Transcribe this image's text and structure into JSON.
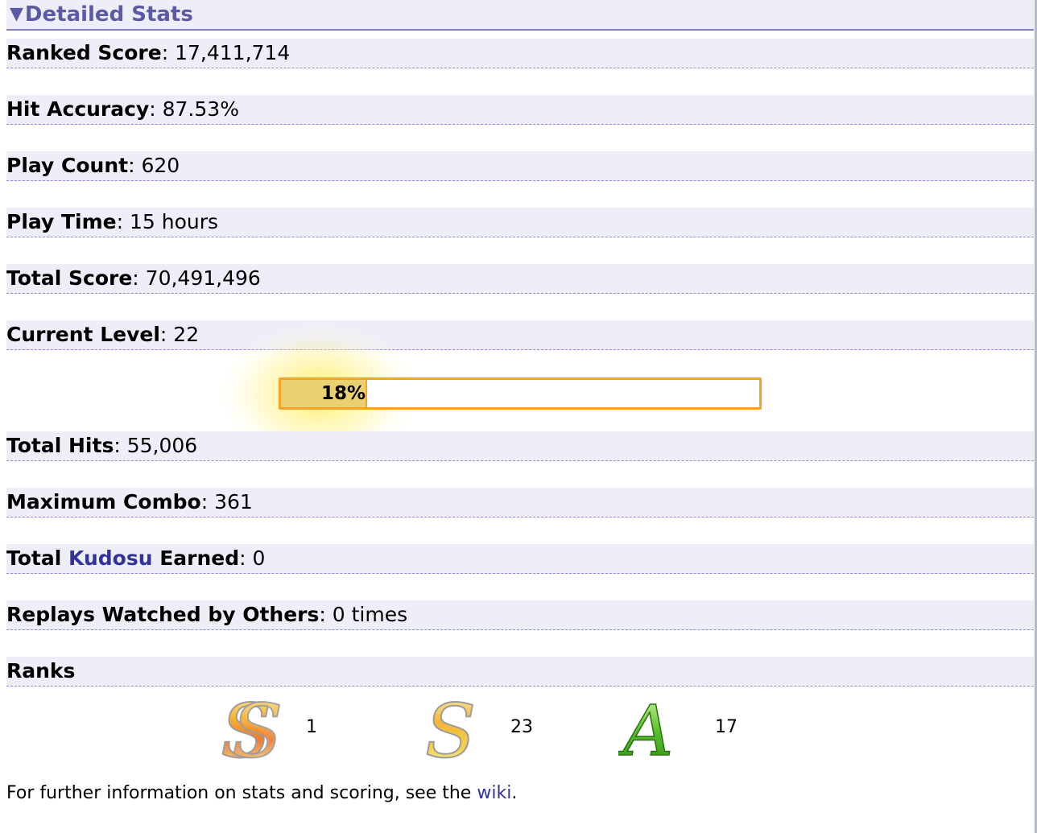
{
  "section": {
    "title": "Detailed Stats",
    "toggle_glyph": "▼"
  },
  "stats": {
    "ranked_score": {
      "label": "Ranked Score",
      "value": "17,411,714"
    },
    "hit_accuracy": {
      "label": "Hit Accuracy",
      "value": "87.53%"
    },
    "play_count": {
      "label": "Play Count",
      "value": "620"
    },
    "play_time": {
      "label": "Play Time",
      "value": "15 hours"
    },
    "total_score": {
      "label": "Total Score",
      "value": "70,491,496"
    },
    "current_level": {
      "label": "Current Level",
      "value": "22"
    },
    "total_hits": {
      "label": "Total Hits",
      "value": "55,006"
    },
    "maximum_combo": {
      "label": "Maximum Combo",
      "value": "361"
    },
    "kudosu": {
      "label_pre": "Total ",
      "link": "Kudosu",
      "label_post": " Earned",
      "value": "0"
    },
    "replays_watched": {
      "label": "Replays Watched by Others",
      "value": "0 times"
    }
  },
  "level_progress": {
    "percent": 18,
    "label": "18%",
    "fill_color": "#ead070",
    "border_color": "#f3a428"
  },
  "ranks": {
    "label": "Ranks",
    "items": [
      {
        "icon": "ss-rank-icon",
        "count": "1"
      },
      {
        "icon": "s-rank-icon",
        "count": "23"
      },
      {
        "icon": "a-rank-icon",
        "count": "17"
      }
    ]
  },
  "footer": {
    "text": "For further information on stats and scoring, see the ",
    "link": "wiki",
    "end": "."
  },
  "colors": {
    "accent": "#5a5aa6",
    "row_bg": "#eeeef9",
    "link": "#33339c"
  }
}
